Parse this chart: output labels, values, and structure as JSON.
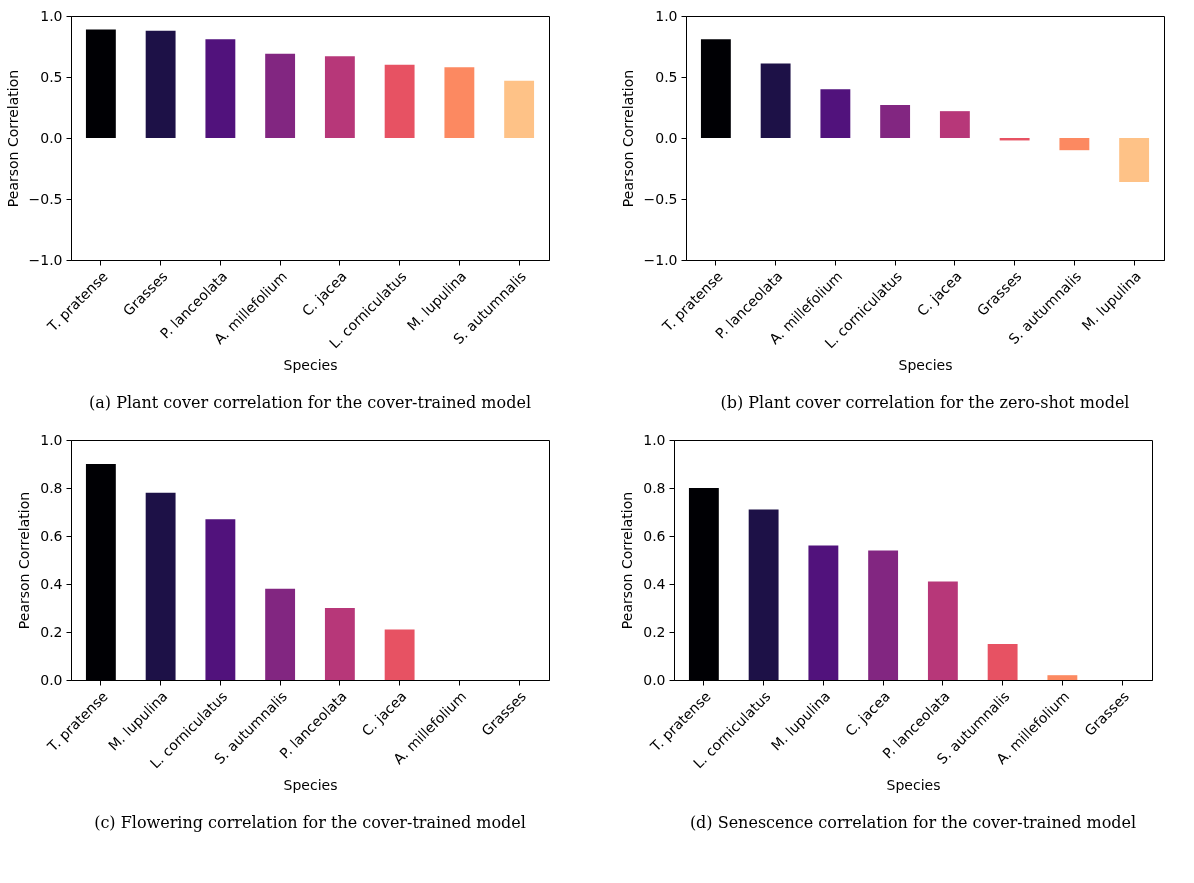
{
  "chart_data": [
    {
      "type": "bar",
      "annotations": [
        "(a) Plant cover correlation for the cover-trained model"
      ],
      "xlabel": "Species",
      "ylabel": "Pearson Correlation",
      "categories": [
        "T. pratense",
        "Grasses",
        "P. lanceolata",
        "A. millefolium",
        "C. jacea",
        "L. corniculatus",
        "M. lupulina",
        "S. autumnalis"
      ],
      "values": [
        0.89,
        0.88,
        0.81,
        0.69,
        0.67,
        0.6,
        0.58,
        0.47
      ],
      "colors": [
        "#000004",
        "#1d1147",
        "#51127c",
        "#822681",
        "#b73779",
        "#e75263",
        "#fc8961",
        "#fec287"
      ],
      "ylim": [
        -1,
        1
      ],
      "yticks": [
        {
          "value": -1,
          "label": "−1.0"
        },
        {
          "value": -0.5,
          "label": "−0.5"
        },
        {
          "value": 0,
          "label": "0.0"
        },
        {
          "value": 0.5,
          "label": "0.5"
        },
        {
          "value": 1,
          "label": "1.0"
        }
      ],
      "grid": false
    },
    {
      "type": "bar",
      "annotations": [
        "(b) Plant cover correlation for the zero-shot model"
      ],
      "xlabel": "Species",
      "ylabel": "Pearson Correlation",
      "categories": [
        "T. pratense",
        "P. lanceolata",
        "A. millefolium",
        "L. corniculatus",
        "C. jacea",
        "Grasses",
        "S. autumnalis",
        "M. lupulina"
      ],
      "values": [
        0.81,
        0.61,
        0.4,
        0.27,
        0.22,
        -0.02,
        -0.1,
        -0.36
      ],
      "colors": [
        "#000004",
        "#1d1147",
        "#51127c",
        "#822681",
        "#b73779",
        "#e75263",
        "#fc8961",
        "#fec287"
      ],
      "ylim": [
        -1,
        1
      ],
      "yticks": [
        {
          "value": -1,
          "label": "−1.0"
        },
        {
          "value": -0.5,
          "label": "−0.5"
        },
        {
          "value": 0,
          "label": "0.0"
        },
        {
          "value": 0.5,
          "label": "0.5"
        },
        {
          "value": 1,
          "label": "1.0"
        }
      ],
      "grid": false
    },
    {
      "type": "bar",
      "annotations": [
        "(c) Flowering correlation for the cover-trained model"
      ],
      "xlabel": "Species",
      "ylabel": "Pearson Correlation",
      "categories": [
        "T. pratense",
        "M. lupulina",
        "L. corniculatus",
        "S. autumnalis",
        "P. lanceolata",
        "C. jacea",
        "A. millefolium",
        "Grasses"
      ],
      "values": [
        0.9,
        0.78,
        0.67,
        0.38,
        0.3,
        0.21,
        0,
        0
      ],
      "colors": [
        "#000004",
        "#1d1147",
        "#51127c",
        "#822681",
        "#b73779",
        "#e75263",
        "#fc8961",
        "#fec287"
      ],
      "ylim": [
        0,
        1
      ],
      "yticks": [
        {
          "value": 0,
          "label": "0.0"
        },
        {
          "value": 0.2,
          "label": "0.2"
        },
        {
          "value": 0.4,
          "label": "0.4"
        },
        {
          "value": 0.6,
          "label": "0.6"
        },
        {
          "value": 0.8,
          "label": "0.8"
        },
        {
          "value": 1,
          "label": "1.0"
        }
      ],
      "grid": false
    },
    {
      "type": "bar",
      "annotations": [
        "(d) Senescence correlation for the cover-trained model"
      ],
      "xlabel": "Species",
      "ylabel": "Pearson Correlation",
      "categories": [
        "T. pratense",
        "L. corniculatus",
        "M. lupulina",
        "C. jacea",
        "P. lanceolata",
        "S. autumnalis",
        "A. millefolium",
        "Grasses"
      ],
      "values": [
        0.8,
        0.71,
        0.56,
        0.54,
        0.41,
        0.15,
        0.02,
        0
      ],
      "colors": [
        "#000004",
        "#1d1147",
        "#51127c",
        "#822681",
        "#b73779",
        "#e75263",
        "#fc8961",
        "#fec287"
      ],
      "ylim": [
        0,
        1
      ],
      "yticks": [
        {
          "value": 0,
          "label": "0.0"
        },
        {
          "value": 0.2,
          "label": "0.2"
        },
        {
          "value": 0.4,
          "label": "0.4"
        },
        {
          "value": 0.6,
          "label": "0.6"
        },
        {
          "value": 0.8,
          "label": "0.8"
        },
        {
          "value": 1,
          "label": "1.0"
        }
      ],
      "grid": false
    }
  ]
}
